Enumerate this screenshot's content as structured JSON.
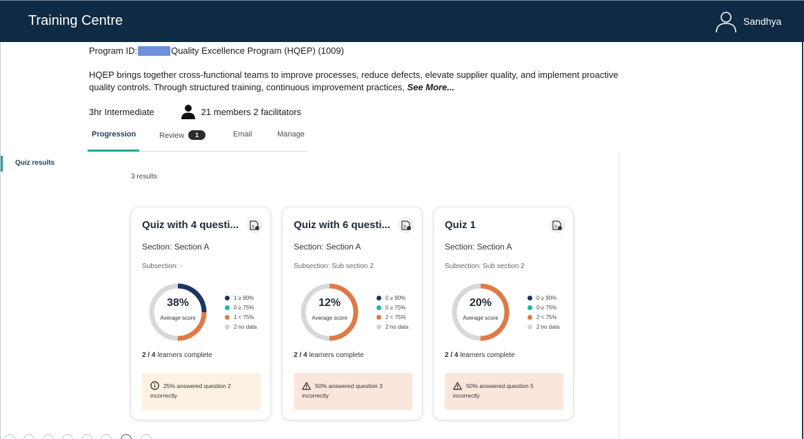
{
  "header": {
    "app_title": "Training Centre",
    "user_name": "Sandhya",
    "user_icon": "user-avatar-icon",
    "background_color": "#0f2b44"
  },
  "program": {
    "id_label": "Program ID:",
    "name": "Quality Excellence Program (HQEP) (1009)",
    "description": "HQEP brings together cross-functional teams to improve processes, reduce defects, elevate supplier quality, and implement proactive quality controls. Through structured training, continuous improvement practices, ",
    "see_more": "See More...",
    "duration_level": "3hr Intermediate",
    "members": "21 members 2 facilitators"
  },
  "tabs": [
    {
      "label": "Progression",
      "active": true
    },
    {
      "label": "Review",
      "badge": "1"
    },
    {
      "label": "Email"
    },
    {
      "label": "Manage"
    }
  ],
  "sidebar": {
    "active_item": "Quiz results",
    "accent_color": "#1aa59a"
  },
  "results": {
    "count_text": "3 results"
  },
  "legend_colors": {
    "high": "#1b3563",
    "mid": "#1fb5a8",
    "low": "#e07a45",
    "none": "#d4d4d4"
  },
  "cards": [
    {
      "title": "Quiz with 4 questi...",
      "section": "Section: Section A",
      "subsection": "Subsection: -",
      "score_label": "38%",
      "score": 38,
      "avg_label": "Average score",
      "legend": [
        "1 ≥ 90%",
        "0 ≥ 75%",
        "1 < 75%",
        "2 no data"
      ],
      "distribution": [
        1,
        0,
        1,
        2
      ],
      "learners_count": "2 / 4",
      "learners_text": " learners complete",
      "alert_type": "info",
      "alert_icon": "info-icon",
      "alert_text": "25% answered question 2 incorrectly",
      "alert_color": "#fdf1e1"
    },
    {
      "title": "Quiz with 6 questi...",
      "section": "Section: Section A",
      "subsection": "Subsection: Sub section 2",
      "score_label": "12%",
      "score": 12,
      "avg_label": "Average score",
      "legend": [
        "0 ≥ 90%",
        "0 ≥ 75%",
        "2 < 75%",
        "2 no data"
      ],
      "distribution": [
        0,
        0,
        2,
        2
      ],
      "learners_count": "2 / 4",
      "learners_text": " learners complete",
      "alert_type": "warning",
      "alert_icon": "warning-icon",
      "alert_text": "50% answered question 3 incorrectly",
      "alert_color": "#fbe6dc"
    },
    {
      "title": "Quiz 1",
      "section": "Section: Section A",
      "subsection": "Subsection: Sub section 2",
      "score_label": "20%",
      "score": 20,
      "avg_label": "Average score",
      "legend": [
        "0 ≥ 90%",
        "0 ≥ 75%",
        "2 < 75%",
        "2 no data"
      ],
      "distribution": [
        0,
        0,
        2,
        2
      ],
      "learners_count": "2 / 4",
      "learners_text": " learners complete",
      "alert_type": "warning",
      "alert_icon": "warning-icon",
      "alert_text": "50% answered question 5 incorrectly",
      "alert_color": "#fbe6dc"
    }
  ]
}
